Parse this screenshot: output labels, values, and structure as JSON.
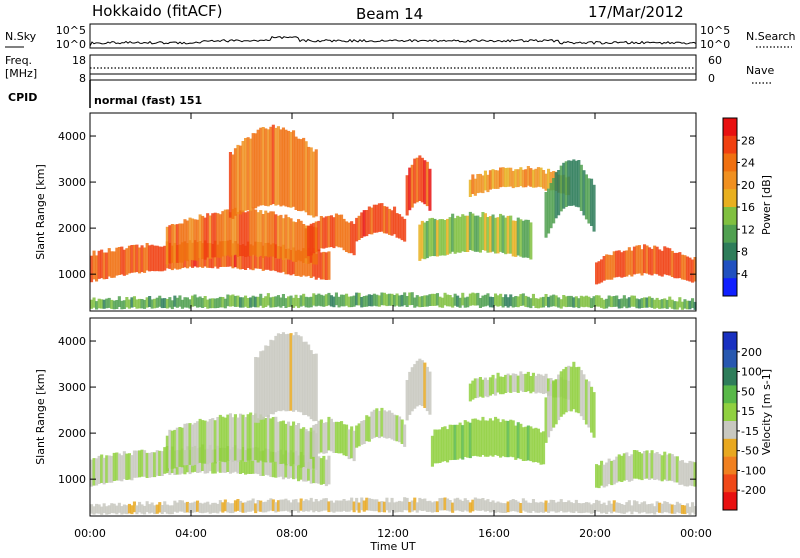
{
  "header": {
    "station": "Hokkaido (fitACF)",
    "beam": "Beam 14",
    "date": "17/Mar/2012"
  },
  "status_panel": {
    "nsky_label": "N.Sky",
    "nsky_ticks": [
      "10^5",
      "10^0"
    ],
    "nsearch_label": "N.Search",
    "nsearch_ticks": [
      "10^5",
      "10^0"
    ],
    "freq_label": "Freq.",
    "freq_unit": "[MHz]",
    "freq_ticks": [
      "18",
      "8"
    ],
    "nave_label": "Nave",
    "nave_ticks": [
      "60",
      "0"
    ],
    "cpid_label": "CPID",
    "cpid_value": "normal (fast) 151"
  },
  "chart_data": [
    {
      "type": "heatmap",
      "title": "",
      "xlabel": "Time UT",
      "ylabel": "Slant Range [km]",
      "x_ticks": [
        "00:00",
        "04:00",
        "08:00",
        "12:00",
        "16:00",
        "20:00",
        "00:00"
      ],
      "y_ticks": [
        "1000",
        "2000",
        "3000",
        "4000"
      ],
      "ylim": [
        200,
        4500
      ],
      "colorbar": {
        "label": "Power [dB]",
        "ticks": [
          "4",
          "8",
          "12",
          "16",
          "20",
          "24",
          "28"
        ],
        "range": [
          0,
          32
        ],
        "colors": [
          "#1020ff",
          "#2050c0",
          "#2e7d5a",
          "#50a050",
          "#80c040",
          "#e8b020",
          "#f09020",
          "#f07010",
          "#f04010",
          "#e81010"
        ]
      },
      "echo_regions": [
        {
          "t": [
            0,
            9.5
          ],
          "r_low": [
            850,
            1150
          ],
          "r_high": [
            1450,
            1700
          ],
          "value": 26
        },
        {
          "t": [
            3,
            9
          ],
          "r_low": [
            1200,
            1400
          ],
          "r_high": [
            2000,
            2400
          ],
          "value": 24
        },
        {
          "t": [
            5.5,
            9
          ],
          "r_low": [
            2200,
            2500
          ],
          "r_high": [
            3600,
            4200
          ],
          "value": 23
        },
        {
          "t": [
            8.5,
            10.5
          ],
          "r_low": [
            1350,
            1600
          ],
          "r_high": [
            2000,
            2300
          ],
          "value": 26
        },
        {
          "t": [
            10.5,
            12.5
          ],
          "r_low": [
            1700,
            1900
          ],
          "r_high": [
            2200,
            2500
          ],
          "value": 27
        },
        {
          "t": [
            12.5,
            13.5
          ],
          "r_low": [
            2300,
            2600
          ],
          "r_high": [
            3200,
            3600
          ],
          "value": 27
        },
        {
          "t": [
            13,
            17.5
          ],
          "r_low": [
            1300,
            1500
          ],
          "r_high": [
            2100,
            2300
          ],
          "value": 14
        },
        {
          "t": [
            15,
            19
          ],
          "r_low": [
            2700,
            2900
          ],
          "r_high": [
            3100,
            3300
          ],
          "value": 20
        },
        {
          "t": [
            18,
            20
          ],
          "r_low": [
            1800,
            2500
          ],
          "r_high": [
            2800,
            3500
          ],
          "value": 10
        },
        {
          "t": [
            20,
            24
          ],
          "r_low": [
            800,
            1000
          ],
          "r_high": [
            1300,
            1600
          ],
          "value": 26
        },
        {
          "t": [
            0,
            24
          ],
          "r_low": [
            250,
            300
          ],
          "r_high": [
            450,
            550
          ],
          "value": 12
        }
      ]
    },
    {
      "type": "heatmap",
      "title": "",
      "xlabel": "Time UT",
      "ylabel": "Slant Range [km]",
      "x_ticks": [
        "00:00",
        "04:00",
        "08:00",
        "12:00",
        "16:00",
        "20:00",
        "00:00"
      ],
      "y_ticks": [
        "1000",
        "2000",
        "3000",
        "4000"
      ],
      "ylim": [
        200,
        4500
      ],
      "colorbar": {
        "label": "Velocity [m s-1]",
        "ticks": [
          "200",
          "100",
          "50",
          "15",
          "-15",
          "-50",
          "-100",
          "-200"
        ],
        "range": [
          -250,
          250
        ],
        "colors": [
          "#1830c0",
          "#2858b0",
          "#2e7d5a",
          "#58b848",
          "#90d040",
          "#c8c8c0",
          "#e8a820",
          "#f08020",
          "#f04818",
          "#e81010"
        ]
      },
      "echo_regions": [
        {
          "t": [
            0,
            9.5
          ],
          "r_low": [
            850,
            1150
          ],
          "r_high": [
            1450,
            1700
          ],
          "value": 0
        },
        {
          "t": [
            3,
            9
          ],
          "r_low": [
            1200,
            1400
          ],
          "r_high": [
            2000,
            2400
          ],
          "value": 0
        },
        {
          "t": [
            6.5,
            9
          ],
          "r_low": [
            2200,
            2500
          ],
          "r_high": [
            3600,
            4200
          ],
          "value": -40
        },
        {
          "t": [
            8.5,
            10.5
          ],
          "r_low": [
            1350,
            1600
          ],
          "r_high": [
            2000,
            2300
          ],
          "value": 0
        },
        {
          "t": [
            10.5,
            12.5
          ],
          "r_low": [
            1700,
            1900
          ],
          "r_high": [
            2200,
            2500
          ],
          "value": 0
        },
        {
          "t": [
            12.5,
            13.5
          ],
          "r_low": [
            2300,
            2600
          ],
          "r_high": [
            3200,
            3600
          ],
          "value": -40
        },
        {
          "t": [
            13.5,
            18
          ],
          "r_low": [
            1300,
            1500
          ],
          "r_high": [
            2000,
            2300
          ],
          "value": 40
        },
        {
          "t": [
            15,
            19
          ],
          "r_low": [
            2700,
            2900
          ],
          "r_high": [
            3100,
            3300
          ],
          "value": 0
        },
        {
          "t": [
            18,
            20
          ],
          "r_low": [
            1800,
            2500
          ],
          "r_high": [
            2800,
            3500
          ],
          "value": 0
        },
        {
          "t": [
            20,
            24
          ],
          "r_low": [
            800,
            1000
          ],
          "r_high": [
            1300,
            1600
          ],
          "value": 0
        },
        {
          "t": [
            0,
            24
          ],
          "r_low": [
            250,
            300
          ],
          "r_high": [
            450,
            550
          ],
          "value": -40
        }
      ]
    }
  ]
}
